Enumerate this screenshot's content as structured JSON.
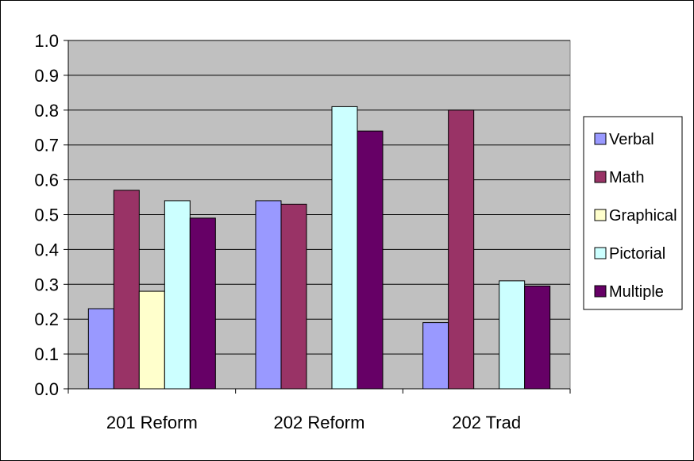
{
  "chart_data": {
    "type": "bar",
    "title": "",
    "xlabel": "",
    "ylabel": "",
    "categories": [
      "201 Reform",
      "202 Reform",
      "202 Trad"
    ],
    "ylim": [
      0,
      1.0
    ],
    "yticks": [
      "0.0",
      "0.1",
      "0.2",
      "0.3",
      "0.4",
      "0.5",
      "0.6",
      "0.7",
      "0.8",
      "0.9",
      "1.0"
    ],
    "grid": true,
    "legend_position": "right",
    "series": [
      {
        "name": "Verbal",
        "color": "#9999ff",
        "values": [
          0.23,
          0.54,
          0.19
        ]
      },
      {
        "name": "Math",
        "color": "#993366",
        "values": [
          0.57,
          0.53,
          0.8
        ]
      },
      {
        "name": "Graphical",
        "color": "#ffffcc",
        "values": [
          0.28,
          0.0,
          0.0
        ]
      },
      {
        "name": "Pictorial",
        "color": "#ccffff",
        "values": [
          0.54,
          0.81,
          0.31
        ]
      },
      {
        "name": "Multiple",
        "color": "#660066",
        "values": [
          0.49,
          0.74,
          0.295
        ]
      }
    ],
    "plot_background": "#c0c0c0"
  }
}
